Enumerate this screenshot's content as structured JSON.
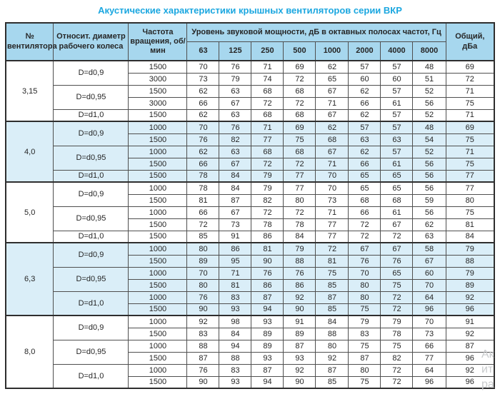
{
  "title": "Акустические характеристики крышных вентиляторов серии ВКР",
  "colors": {
    "title_accent": "#1ba7e0",
    "header_bg": "#a7d7ee",
    "band_bg": "#daeef8",
    "border": "#4f4f4f",
    "outer_border": "#2e2e2e",
    "watermark": "#c9cbcd"
  },
  "watermark": {
    "lines": [
      "Ак",
      "ит",
      "ра"
    ]
  },
  "table": {
    "headers": {
      "fan_no": "№ вентилятора",
      "diameter": "Относит. диаметр рабочего колеса",
      "speed": "Частота вращения, об/мин",
      "spl_group": "Уровень звуковой мощности, дБ в октавных полосах частот, Гц",
      "frequencies": [
        "63",
        "125",
        "250",
        "500",
        "1000",
        "2000",
        "4000",
        "8000"
      ],
      "total": "Общий, дБа"
    },
    "groups": [
      {
        "fan": "3,15",
        "shaded": false,
        "subgroups": [
          {
            "diameter": "D=d0,9",
            "rows": [
              {
                "speed": "1500",
                "values": [
                  70,
                  76,
                  71,
                  69,
                  62,
                  57,
                  57,
                  48
                ],
                "total": 69
              },
              {
                "speed": "3000",
                "values": [
                  73,
                  79,
                  74,
                  72,
                  65,
                  60,
                  60,
                  51
                ],
                "total": 72
              }
            ]
          },
          {
            "diameter": "D=d0,95",
            "rows": [
              {
                "speed": "1500",
                "values": [
                  62,
                  63,
                  68,
                  68,
                  67,
                  62,
                  57,
                  52
                ],
                "total": 71
              },
              {
                "speed": "3000",
                "values": [
                  66,
                  67,
                  72,
                  72,
                  71,
                  66,
                  61,
                  56
                ],
                "total": 75
              }
            ]
          },
          {
            "diameter": "D=d1,0",
            "rows": [
              {
                "speed": "1500",
                "values": [
                  62,
                  63,
                  68,
                  68,
                  67,
                  62,
                  57,
                  52
                ],
                "total": 71
              }
            ]
          }
        ]
      },
      {
        "fan": "4,0",
        "shaded": true,
        "subgroups": [
          {
            "diameter": "D=d0,9",
            "rows": [
              {
                "speed": "1000",
                "values": [
                  70,
                  76,
                  71,
                  69,
                  62,
                  57,
                  57,
                  48
                ],
                "total": 69
              },
              {
                "speed": "1500",
                "values": [
                  76,
                  82,
                  77,
                  75,
                  68,
                  63,
                  63,
                  54
                ],
                "total": 75
              }
            ]
          },
          {
            "diameter": "D=d0,95",
            "rows": [
              {
                "speed": "1000",
                "values": [
                  62,
                  63,
                  68,
                  68,
                  67,
                  62,
                  57,
                  52
                ],
                "total": 71
              },
              {
                "speed": "1500",
                "values": [
                  66,
                  67,
                  72,
                  72,
                  71,
                  66,
                  61,
                  56
                ],
                "total": 75
              }
            ]
          },
          {
            "diameter": "D=d1,0",
            "rows": [
              {
                "speed": "1500",
                "values": [
                  78,
                  84,
                  79,
                  77,
                  70,
                  65,
                  65,
                  56
                ],
                "total": 77
              }
            ]
          }
        ]
      },
      {
        "fan": "5,0",
        "shaded": false,
        "subgroups": [
          {
            "diameter": "D=d0,9",
            "rows": [
              {
                "speed": "1000",
                "values": [
                  78,
                  84,
                  79,
                  77,
                  70,
                  65,
                  65,
                  56
                ],
                "total": 77
              },
              {
                "speed": "1500",
                "values": [
                  81,
                  87,
                  82,
                  80,
                  73,
                  68,
                  68,
                  59
                ],
                "total": 80
              }
            ]
          },
          {
            "diameter": "D=d0,95",
            "rows": [
              {
                "speed": "1000",
                "values": [
                  66,
                  67,
                  72,
                  72,
                  71,
                  66,
                  61,
                  56
                ],
                "total": 75
              },
              {
                "speed": "1500",
                "values": [
                  72,
                  73,
                  78,
                  78,
                  77,
                  72,
                  67,
                  62
                ],
                "total": 81
              }
            ]
          },
          {
            "diameter": "D=d1,0",
            "rows": [
              {
                "speed": "1500",
                "values": [
                  85,
                  91,
                  86,
                  84,
                  77,
                  72,
                  72,
                  63
                ],
                "total": 84
              }
            ]
          }
        ]
      },
      {
        "fan": "6,3",
        "shaded": true,
        "subgroups": [
          {
            "diameter": "D=d0,9",
            "rows": [
              {
                "speed": "1000",
                "values": [
                  80,
                  86,
                  81,
                  79,
                  72,
                  67,
                  67,
                  58
                ],
                "total": 79
              },
              {
                "speed": "1500",
                "values": [
                  89,
                  95,
                  90,
                  88,
                  81,
                  76,
                  76,
                  67
                ],
                "total": 88
              }
            ]
          },
          {
            "diameter": "D=d0,95",
            "rows": [
              {
                "speed": "1000",
                "values": [
                  70,
                  71,
                  76,
                  76,
                  75,
                  70,
                  65,
                  60
                ],
                "total": 79
              },
              {
                "speed": "1500",
                "values": [
                  80,
                  81,
                  86,
                  86,
                  85,
                  80,
                  75,
                  70
                ],
                "total": 89
              }
            ]
          },
          {
            "diameter": "D=d1,0",
            "rows": [
              {
                "speed": "1000",
                "values": [
                  76,
                  83,
                  87,
                  92,
                  87,
                  80,
                  72,
                  64
                ],
                "total": 92
              },
              {
                "speed": "1500",
                "values": [
                  90,
                  93,
                  94,
                  90,
                  85,
                  75,
                  72,
                  96
                ],
                "total": 96
              }
            ]
          }
        ]
      },
      {
        "fan": "8,0",
        "shaded": false,
        "subgroups": [
          {
            "diameter": "D=d0,9",
            "rows": [
              {
                "speed": "1000",
                "values": [
                  92,
                  98,
                  93,
                  91,
                  84,
                  79,
                  79,
                  70
                ],
                "total": 91
              },
              {
                "speed": "1500",
                "values": [
                  83,
                  84,
                  89,
                  89,
                  88,
                  83,
                  78,
                  73
                ],
                "total": 92
              }
            ]
          },
          {
            "diameter": "D=d0,95",
            "rows": [
              {
                "speed": "1000",
                "values": [
                  88,
                  94,
                  89,
                  87,
                  80,
                  75,
                  75,
                  66
                ],
                "total": 87
              },
              {
                "speed": "1500",
                "values": [
                  87,
                  88,
                  93,
                  93,
                  92,
                  87,
                  82,
                  77
                ],
                "total": 96
              }
            ]
          },
          {
            "diameter": "D=d1,0",
            "rows": [
              {
                "speed": "1000",
                "values": [
                  76,
                  83,
                  87,
                  92,
                  87,
                  80,
                  72,
                  64
                ],
                "total": 92
              },
              {
                "speed": "1500",
                "values": [
                  90,
                  93,
                  94,
                  90,
                  85,
                  75,
                  72,
                  96
                ],
                "total": 96
              }
            ]
          }
        ]
      }
    ]
  }
}
